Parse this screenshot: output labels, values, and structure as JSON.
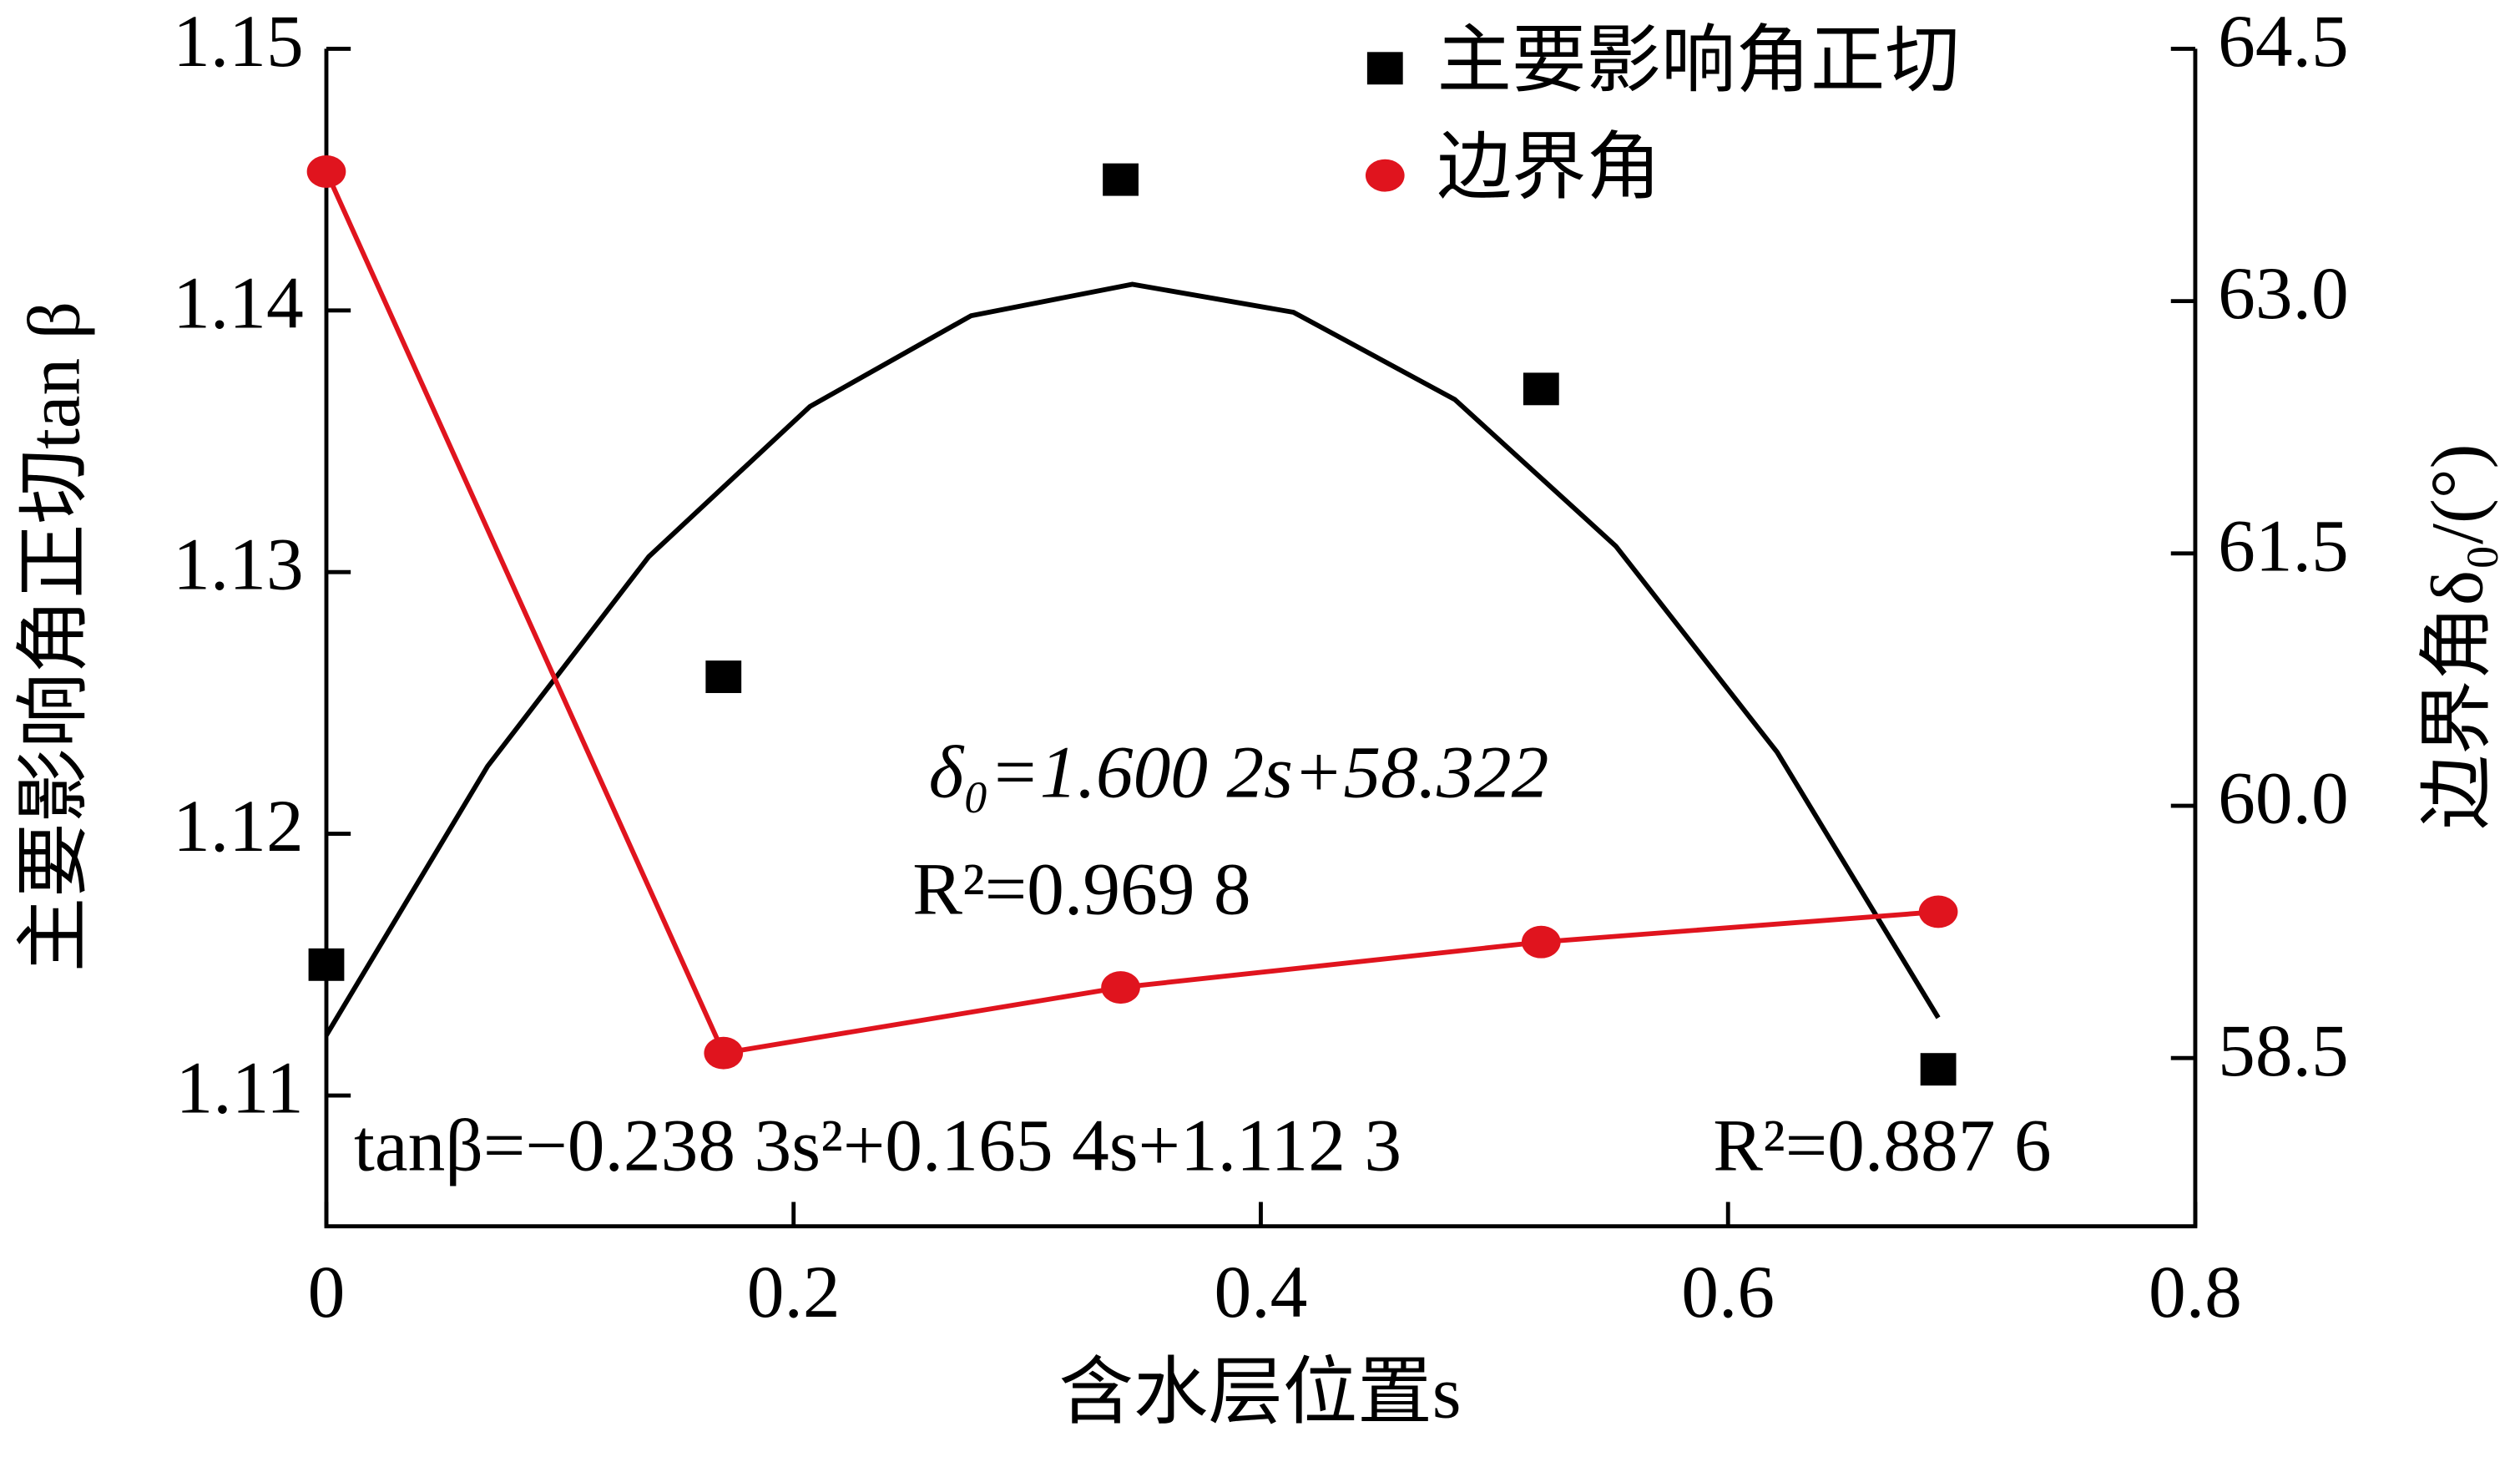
{
  "chart_data": {
    "type": "scatter",
    "x_label": "含水层位置s",
    "y_label": "主要影响角正切tan β",
    "y2_label": "边界角δ₀/(°)",
    "xlim": [
      0,
      0.8
    ],
    "xticks": [
      0,
      0.2,
      0.4,
      0.6,
      0.8
    ],
    "ylim": [
      1.105,
      1.15
    ],
    "yticks": [
      1.11,
      1.12,
      1.13,
      1.14,
      1.15
    ],
    "y2lim": [
      57.5,
      64.5
    ],
    "y2ticks": [
      58.5,
      60.0,
      61.5,
      63.0,
      64.5
    ],
    "series": [
      {
        "name": "主要影响角正切",
        "color": "#000000",
        "marker": "square",
        "x": [
          0,
          0.17,
          0.34,
          0.52,
          0.69
        ],
        "values": [
          1.115,
          1.126,
          1.145,
          1.137,
          1.111
        ]
      },
      {
        "name": "边界角",
        "color": "#e0141e",
        "marker": "circle",
        "line": true,
        "axis": "y2",
        "x": [
          0,
          0.17,
          0.34,
          0.52,
          0.69
        ],
        "values": [
          63.77,
          58.53,
          58.92,
          59.19,
          59.37
        ]
      }
    ],
    "fit": {
      "color": "#000000",
      "x": [
        0,
        0.069,
        0.138,
        0.207,
        0.276,
        0.345,
        0.414,
        0.483,
        0.552,
        0.621,
        0.69
      ],
      "values": [
        1.1123,
        1.12258,
        1.13059,
        1.13633,
        1.1398,
        1.141,
        1.13993,
        1.1366,
        1.13099,
        1.12312,
        1.11297
      ]
    },
    "annotations": [
      "δ₀=1.600 2s+58.322",
      "R²=0.969 8",
      "tanβ=−0.238 3s²+0.165 4s+1.112 3",
      "R²=0.887 6"
    ]
  }
}
